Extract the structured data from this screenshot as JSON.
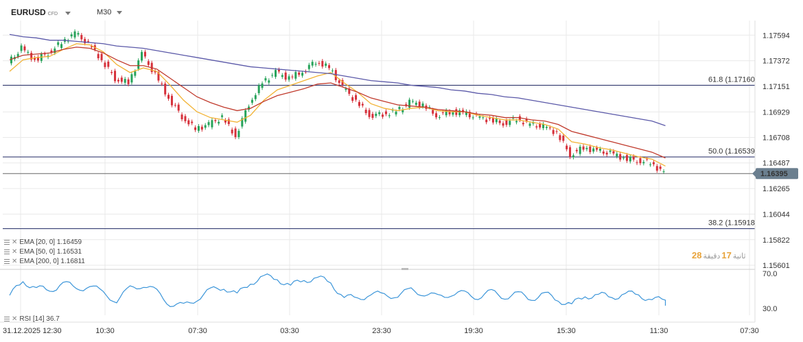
{
  "header": {
    "symbol": "EURUSD",
    "symbol_tag": "CFD",
    "timeframe": "M30"
  },
  "price_axis": {
    "ticks": [
      "1.17594",
      "1.17372",
      "1.17151",
      "1.16929",
      "1.16708",
      "1.16487",
      "1.16265",
      "1.16044",
      "1.15822",
      "1.15601"
    ],
    "current_price": "1.16395",
    "current_price_color": "#6b7f8f"
  },
  "fib_levels": [
    {
      "label": "61.8 (1.17160",
      "price": 1.1716
    },
    {
      "label": "50.0 (1.16539",
      "price": 1.16539
    },
    {
      "label": "38.2 (1.15918",
      "price": 1.15918
    }
  ],
  "indicators": {
    "ema20": {
      "label": "EMA [20, 0] 1.16459",
      "color": "#f2b233"
    },
    "ema50": {
      "label": "EMA [50, 0] 1.16531",
      "color": "#c0392b"
    },
    "ema200": {
      "label": "EMA [200, 0] 1.16811",
      "color": "#5a58a8"
    },
    "rsi": {
      "label": "RSI [14] 36.7",
      "color": "#3b95d9",
      "ticks": [
        "70.0",
        "30.0"
      ]
    }
  },
  "countdown": {
    "minutes": "28",
    "min_label": "دقيقة",
    "seconds": "17",
    "sec_label": "ثانية"
  },
  "time_axis": [
    "31.12.2025  12:30",
    "10:30",
    "07:30",
    "03:30",
    "23:30",
    "19:30",
    "15:30",
    "11:30",
    "07:30"
  ],
  "colors": {
    "bull": "#27a35a",
    "bear": "#d6303a",
    "grid": "#e9e9e9"
  },
  "chart_data": {
    "type": "line",
    "x": [
      0,
      20,
      40,
      60,
      80,
      100,
      120,
      140,
      160,
      180,
      200,
      220,
      240,
      260,
      280,
      300,
      320,
      340,
      360,
      380,
      400,
      420,
      440,
      460,
      480,
      500,
      520,
      540,
      560,
      580,
      600,
      620,
      640,
      660,
      680,
      700,
      720,
      740,
      760,
      780,
      800,
      820,
      840,
      860,
      880,
      900,
      920,
      940,
      960,
      980
    ],
    "series": [
      {
        "name": "EURUSD",
        "values": [
          1.1735,
          1.1748,
          1.1738,
          1.1744,
          1.1753,
          1.1761,
          1.1752,
          1.1738,
          1.1722,
          1.1718,
          1.1743,
          1.1725,
          1.1705,
          1.1689,
          1.1678,
          1.1682,
          1.1688,
          1.1672,
          1.17,
          1.1718,
          1.1727,
          1.1722,
          1.1728,
          1.1737,
          1.1731,
          1.1714,
          1.1702,
          1.169,
          1.1691,
          1.1693,
          1.1701,
          1.1699,
          1.169,
          1.1693,
          1.1692,
          1.1688,
          1.1686,
          1.1683,
          1.1687,
          1.1682,
          1.168,
          1.1675,
          1.1656,
          1.1662,
          1.1659,
          1.1657,
          1.1653,
          1.1651,
          1.1649,
          1.164
        ]
      },
      {
        "name": "EMA [20, 0] 1.16459",
        "values": [
          1.1728,
          1.1738,
          1.174,
          1.1741,
          1.1747,
          1.1752,
          1.1751,
          1.1745,
          1.1734,
          1.1727,
          1.1731,
          1.1728,
          1.1716,
          1.1703,
          1.1693,
          1.1688,
          1.1686,
          1.1684,
          1.169,
          1.1703,
          1.1712,
          1.1716,
          1.172,
          1.1724,
          1.1727,
          1.1718,
          1.171,
          1.17,
          1.1696,
          1.1694,
          1.1696,
          1.1697,
          1.1694,
          1.1693,
          1.1693,
          1.169,
          1.1688,
          1.1686,
          1.1686,
          1.1684,
          1.1682,
          1.1678,
          1.1667,
          1.1665,
          1.1662,
          1.166,
          1.1657,
          1.1654,
          1.1652,
          1.1646
        ]
      },
      {
        "name": "EMA [50, 0] 1.16531",
        "values": [
          1.1738,
          1.1742,
          1.1743,
          1.1744,
          1.1747,
          1.1749,
          1.1748,
          1.1744,
          1.1738,
          1.1733,
          1.1733,
          1.173,
          1.1722,
          1.1714,
          1.1706,
          1.1701,
          1.1697,
          1.1694,
          1.1696,
          1.1702,
          1.1707,
          1.171,
          1.1713,
          1.1717,
          1.1718,
          1.1714,
          1.171,
          1.1705,
          1.1702,
          1.1699,
          1.1698,
          1.1697,
          1.1695,
          1.1694,
          1.1693,
          1.1691,
          1.169,
          1.1688,
          1.1688,
          1.1686,
          1.1685,
          1.1682,
          1.1676,
          1.1673,
          1.167,
          1.1667,
          1.1664,
          1.1661,
          1.1658,
          1.1653
        ]
      },
      {
        "name": "EMA [200, 0] 1.16811",
        "values": [
          1.176,
          1.1758,
          1.1757,
          1.1755,
          1.1755,
          1.1754,
          1.1753,
          1.1752,
          1.175,
          1.1749,
          1.1748,
          1.1746,
          1.1744,
          1.1742,
          1.174,
          1.1738,
          1.1736,
          1.1734,
          1.1732,
          1.1731,
          1.173,
          1.1729,
          1.1728,
          1.1727,
          1.1726,
          1.1724,
          1.1722,
          1.172,
          1.1719,
          1.1718,
          1.1716,
          1.1715,
          1.1714,
          1.1712,
          1.1711,
          1.1709,
          1.1708,
          1.1706,
          1.1705,
          1.1703,
          1.1701,
          1.1699,
          1.1697,
          1.1695,
          1.1693,
          1.1691,
          1.1689,
          1.1687,
          1.1685,
          1.1681
        ]
      }
    ],
    "rsi_values": [
      45,
      60,
      55,
      48,
      62,
      50,
      58,
      46,
      40,
      52,
      58,
      48,
      36,
      32,
      42,
      50,
      55,
      45,
      60,
      66,
      64,
      56,
      62,
      66,
      58,
      44,
      40,
      48,
      44,
      46,
      50,
      48,
      42,
      48,
      46,
      44,
      48,
      44,
      46,
      42,
      46,
      40,
      34,
      44,
      46,
      42,
      48,
      44,
      42,
      37
    ],
    "rsi_ylim": [
      30,
      70
    ],
    "ylim": [
      1.15601,
      1.17594
    ],
    "grid": true
  }
}
